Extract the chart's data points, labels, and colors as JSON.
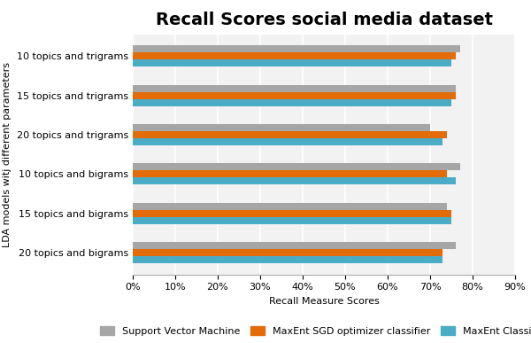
{
  "title": "Recall Scores social media dataset",
  "xlabel": "Recall Measure Scores",
  "ylabel": "LDA models witj different parameters",
  "categories": [
    "20 topics and bigrams",
    "15 topics and bigrams",
    "10 topics and bigrams",
    "20 topics and trigrams",
    "15 topics and trigrams",
    "10 topics and trigrams"
  ],
  "series": [
    {
      "label": "Support Vector Machine",
      "color": "#a6a6a6",
      "values": [
        0.76,
        0.74,
        0.77,
        0.7,
        0.76,
        0.77
      ]
    },
    {
      "label": "MaxEnt SGD optimizer classifier",
      "color": "#e36c09",
      "values": [
        0.73,
        0.75,
        0.74,
        0.74,
        0.76,
        0.76
      ]
    },
    {
      "label": "MaxEnt Classifier",
      "color": "#4bacc6",
      "values": [
        0.73,
        0.75,
        0.76,
        0.73,
        0.75,
        0.75
      ]
    }
  ],
  "xlim": [
    0,
    0.9
  ],
  "xticks": [
    0.0,
    0.1,
    0.2,
    0.3,
    0.4,
    0.5,
    0.6,
    0.7,
    0.8,
    0.9
  ],
  "background_color": "#ffffff",
  "plot_bg_color": "#f2f2f2",
  "grid_color": "#ffffff",
  "title_fontsize": 14,
  "label_fontsize": 8,
  "tick_fontsize": 8,
  "legend_fontsize": 8,
  "bar_height": 0.18
}
